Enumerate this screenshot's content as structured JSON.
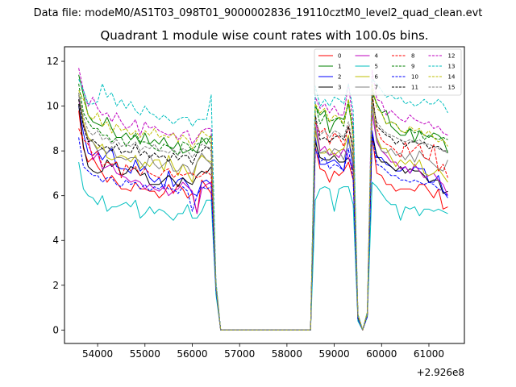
{
  "suptitle": "Data file: modeM0/AS1T03_098T01_9000002836_19110cztM0_level2_quad_clean.evt",
  "chart_data": {
    "type": "line",
    "title": "Quadrant 1 module wise count rates with 100.0s bins.",
    "xlabel": "",
    "ylabel": "",
    "offset_label": "+2.926e8",
    "xlim": [
      53300,
      61750
    ],
    "ylim": [
      -0.6,
      12.65
    ],
    "xticks": [
      54000,
      55000,
      56000,
      57000,
      58000,
      59000,
      60000,
      61000
    ],
    "yticks": [
      0,
      2,
      4,
      6,
      8,
      10,
      12
    ],
    "legend_location": "top-right",
    "x": [
      53600,
      53700,
      53800,
      53900,
      54000,
      54100,
      54200,
      54300,
      54400,
      54500,
      54600,
      54700,
      54800,
      54900,
      55000,
      55100,
      55200,
      55300,
      55400,
      55500,
      55600,
      55700,
      55800,
      55900,
      56000,
      56100,
      56200,
      56300,
      56400,
      56500,
      56600,
      58500,
      58600,
      58700,
      58800,
      58900,
      59000,
      59100,
      59200,
      59300,
      59400,
      59500,
      59600,
      59700,
      59800,
      59900,
      60000,
      60100,
      60200,
      60300,
      60400,
      60500,
      60600,
      60700,
      60800,
      60900,
      61000,
      61100,
      61200,
      61300,
      61400
    ],
    "series": [
      {
        "name": "0",
        "color": "#ff0000",
        "dash": "solid",
        "values": [
          9.8,
          8.1,
          7.5,
          7.7,
          7.3,
          7.0,
          6.6,
          6.9,
          6.6,
          6.3,
          6.3,
          6.2,
          6.6,
          6.3,
          6.3,
          6.2,
          6.2,
          5.9,
          6.1,
          6.5,
          6.1,
          6.5,
          6.3,
          5.9,
          6.1,
          5.2,
          6.7,
          6.4,
          6.1,
          1.8,
          0.0,
          0.0,
          8.2,
          7.2,
          7.1,
          6.6,
          7.1,
          6.9,
          7.1,
          7.5,
          6.7,
          0.5,
          0.0,
          0.7,
          8.7,
          7.0,
          6.9,
          6.5,
          6.5,
          6.2,
          6.3,
          6.3,
          6.3,
          6.2,
          6.5,
          6.5,
          6.2,
          5.9,
          6.3,
          5.4,
          5.5
        ]
      },
      {
        "name": "1",
        "color": "#008000",
        "dash": "solid",
        "values": [
          11.4,
          10.5,
          9.6,
          9.3,
          9.2,
          9.1,
          9.5,
          9.0,
          8.6,
          8.6,
          8.8,
          8.5,
          8.7,
          8.3,
          8.8,
          8.3,
          8.5,
          8.3,
          8.6,
          8.2,
          8.1,
          8.4,
          7.9,
          8.0,
          8.1,
          7.9,
          8.6,
          8.3,
          8.7,
          2.0,
          0.0,
          0.0,
          10.0,
          9.6,
          9.8,
          8.8,
          9.3,
          9.5,
          9.4,
          10.1,
          8.7,
          0.6,
          0.0,
          0.8,
          10.6,
          10.1,
          9.7,
          9.8,
          9.1,
          8.9,
          8.7,
          8.7,
          9.0,
          8.4,
          8.9,
          8.7,
          8.6,
          8.8,
          8.7,
          8.5,
          7.9
        ]
      },
      {
        "name": "2",
        "color": "#0000ff",
        "dash": "solid",
        "values": [
          10.0,
          8.8,
          7.9,
          7.8,
          8.0,
          7.6,
          7.9,
          8.1,
          7.3,
          7.2,
          7.2,
          7.0,
          7.6,
          7.1,
          7.3,
          6.8,
          6.6,
          6.8,
          6.3,
          7.1,
          6.4,
          6.7,
          6.8,
          6.5,
          6.1,
          6.0,
          6.6,
          6.7,
          6.5,
          1.9,
          0.0,
          0.0,
          8.6,
          7.4,
          7.4,
          7.5,
          7.6,
          7.4,
          7.1,
          8.6,
          7.2,
          0.5,
          0.0,
          0.7,
          8.9,
          7.7,
          7.7,
          7.4,
          7.3,
          7.1,
          7.1,
          7.3,
          7.0,
          7.3,
          7.2,
          7.2,
          6.6,
          6.6,
          6.9,
          6.2,
          5.9
        ]
      },
      {
        "name": "3",
        "color": "#000000",
        "dash": "solid",
        "values": [
          10.1,
          8.2,
          7.3,
          7.1,
          7.0,
          7.1,
          7.6,
          7.3,
          7.5,
          6.9,
          7.0,
          7.3,
          7.2,
          6.9,
          7.0,
          6.5,
          6.5,
          6.5,
          6.7,
          6.9,
          6.7,
          6.4,
          6.8,
          6.6,
          6.5,
          6.9,
          7.1,
          7.0,
          7.3,
          1.9,
          0.0,
          0.0,
          8.4,
          7.7,
          7.6,
          7.6,
          7.8,
          7.5,
          7.5,
          7.7,
          7.1,
          0.5,
          0.0,
          0.7,
          8.7,
          7.8,
          7.5,
          7.5,
          7.3,
          7.1,
          7.3,
          7.0,
          7.2,
          7.1,
          7.1,
          6.9,
          6.6,
          6.7,
          6.7,
          6.1,
          6.2
        ]
      },
      {
        "name": "4",
        "color": "#bf00bf",
        "dash": "solid",
        "values": [
          10.3,
          9.2,
          8.5,
          7.6,
          7.9,
          7.2,
          7.3,
          7.4,
          7.0,
          6.9,
          6.8,
          6.6,
          6.7,
          6.6,
          6.3,
          6.5,
          6.3,
          6.2,
          6.4,
          6.0,
          6.2,
          6.3,
          6.6,
          6.4,
          6.2,
          5.2,
          6.3,
          6.5,
          6.6,
          1.8,
          0.0,
          0.0,
          9.5,
          8.0,
          8.2,
          7.8,
          7.9,
          7.7,
          8.1,
          7.7,
          7.2,
          0.6,
          0.0,
          0.7,
          9.7,
          8.4,
          8.0,
          7.8,
          7.5,
          7.5,
          7.2,
          7.3,
          7.0,
          7.4,
          7.1,
          6.8,
          6.9,
          7.0,
          6.7,
          6.5,
          6.0
        ]
      },
      {
        "name": "5",
        "color": "#00bfbf",
        "dash": "solid",
        "values": [
          7.5,
          6.3,
          6.0,
          5.9,
          5.6,
          6.0,
          5.3,
          5.5,
          5.5,
          5.6,
          5.7,
          5.5,
          5.8,
          5.0,
          5.2,
          5.5,
          5.2,
          5.4,
          5.3,
          5.1,
          4.9,
          5.2,
          5.2,
          5.6,
          5.0,
          5.0,
          5.3,
          5.8,
          5.8,
          1.6,
          0.0,
          0.0,
          5.8,
          6.3,
          6.4,
          6.3,
          5.3,
          6.3,
          6.4,
          6.4,
          5.6,
          0.4,
          0.0,
          0.6,
          6.6,
          6.4,
          6.1,
          5.8,
          5.6,
          5.6,
          4.9,
          5.5,
          5.4,
          5.5,
          5.1,
          5.4,
          5.4,
          5.3,
          5.4,
          5.3,
          5.2
        ]
      },
      {
        "name": "6",
        "color": "#bfbf00",
        "dash": "solid",
        "values": [
          10.6,
          9.3,
          8.6,
          8.4,
          8.1,
          8.3,
          7.7,
          7.6,
          7.7,
          7.8,
          7.7,
          7.5,
          7.8,
          7.2,
          7.5,
          7.3,
          7.6,
          7.6,
          7.1,
          7.8,
          7.3,
          6.9,
          7.4,
          7.0,
          6.6,
          7.5,
          7.8,
          7.6,
          7.5,
          2.0,
          0.0,
          0.0,
          8.9,
          7.9,
          7.9,
          8.1,
          7.8,
          8.0,
          8.1,
          8.7,
          7.5,
          0.6,
          0.0,
          0.7,
          10.3,
          8.6,
          8.1,
          8.1,
          7.7,
          7.3,
          7.6,
          7.4,
          7.6,
          7.3,
          7.6,
          7.0,
          6.9,
          7.0,
          7.2,
          6.9,
          6.6
        ]
      },
      {
        "name": "7",
        "color": "#7f7f7f",
        "dash": "solid",
        "values": [
          10.5,
          9.1,
          8.5,
          8.4,
          8.0,
          8.1,
          7.9,
          8.2,
          7.7,
          7.7,
          7.6,
          7.7,
          7.7,
          7.5,
          7.2,
          7.8,
          7.4,
          7.2,
          7.4,
          7.6,
          7.1,
          7.1,
          7.4,
          7.3,
          6.9,
          7.5,
          7.9,
          7.6,
          7.4,
          2.0,
          0.0,
          0.0,
          9.1,
          7.9,
          8.0,
          7.8,
          8.1,
          8.0,
          7.6,
          8.4,
          7.8,
          0.6,
          0.0,
          0.7,
          10.1,
          8.5,
          8.0,
          7.9,
          8.1,
          7.8,
          7.9,
          7.6,
          7.9,
          7.5,
          8.0,
          7.7,
          7.6,
          7.4,
          7.2,
          7.1,
          7.6
        ]
      },
      {
        "name": "8",
        "color": "#ff0000",
        "dash": "dashed",
        "values": [
          9.0,
          8.5,
          8.3,
          7.8,
          8.0,
          7.3,
          7.5,
          7.4,
          7.5,
          6.8,
          7.4,
          7.1,
          7.3,
          6.9,
          7.2,
          7.0,
          6.9,
          6.8,
          7.1,
          7.2,
          6.8,
          7.0,
          6.9,
          7.0,
          7.0,
          6.8,
          6.9,
          7.1,
          6.9,
          1.9,
          0.0,
          0.0,
          9.3,
          8.8,
          9.0,
          8.3,
          8.8,
          8.6,
          8.2,
          9.1,
          8.0,
          0.6,
          0.0,
          0.7,
          10.6,
          9.0,
          8.5,
          8.3,
          8.2,
          8.0,
          7.7,
          8.4,
          7.9,
          8.1,
          8.3,
          7.7,
          7.6,
          8.3,
          7.1,
          7.4,
          6.8
        ]
      },
      {
        "name": "9",
        "color": "#008000",
        "dash": "dashed",
        "values": [
          11.0,
          9.7,
          9.3,
          9.0,
          9.0,
          8.7,
          8.7,
          8.4,
          8.6,
          8.6,
          8.2,
          8.5,
          8.8,
          8.4,
          8.4,
          8.3,
          8.1,
          8.0,
          8.3,
          8.2,
          8.0,
          7.8,
          8.4,
          8.3,
          8.0,
          8.3,
          8.4,
          8.6,
          8.3,
          2.0,
          0.0,
          0.0,
          10.1,
          9.2,
          9.6,
          9.3,
          9.4,
          9.5,
          9.1,
          10.3,
          8.9,
          0.7,
          0.0,
          0.8,
          10.7,
          10.1,
          9.7,
          9.2,
          9.3,
          9.2,
          8.9,
          8.8,
          9.0,
          8.8,
          8.9,
          8.5,
          8.7,
          8.6,
          8.5,
          8.6,
          8.5
        ]
      },
      {
        "name": "10",
        "color": "#0000ff",
        "dash": "dashed",
        "values": [
          8.6,
          7.3,
          7.1,
          6.9,
          6.9,
          6.6,
          6.8,
          6.8,
          6.5,
          6.4,
          6.7,
          6.5,
          6.6,
          6.3,
          6.5,
          6.2,
          6.4,
          6.3,
          6.5,
          6.3,
          6.3,
          6.1,
          6.4,
          6.2,
          5.3,
          6.0,
          6.4,
          6.3,
          6.4,
          1.8,
          0.0,
          0.0,
          8.1,
          7.5,
          7.7,
          7.2,
          7.4,
          7.3,
          7.1,
          8.1,
          6.7,
          0.5,
          0.0,
          0.6,
          8.7,
          7.4,
          7.3,
          7.1,
          6.9,
          6.9,
          6.7,
          6.7,
          6.6,
          6.7,
          6.6,
          6.5,
          6.6,
          6.5,
          6.3,
          6.2,
          6.0
        ]
      },
      {
        "name": "11",
        "color": "#000000",
        "dash": "dashed",
        "values": [
          10.3,
          9.1,
          8.4,
          8.5,
          8.3,
          8.1,
          8.2,
          8.0,
          8.3,
          7.9,
          8.0,
          7.9,
          8.3,
          7.8,
          8.0,
          7.7,
          7.9,
          7.7,
          7.8,
          7.5,
          7.9,
          7.6,
          7.8,
          7.8,
          7.4,
          7.9,
          8.0,
          8.2,
          8.0,
          2.0,
          0.0,
          0.0,
          9.6,
          8.5,
          8.6,
          8.4,
          8.6,
          8.7,
          8.5,
          9.1,
          8.0,
          0.6,
          0.0,
          0.7,
          10.5,
          9.1,
          8.9,
          8.7,
          8.6,
          8.3,
          8.5,
          8.2,
          8.4,
          8.4,
          8.3,
          8.4,
          8.1,
          8.2,
          8.2,
          8.0,
          8.0
        ]
      },
      {
        "name": "12",
        "color": "#bf00bf",
        "dash": "dashed",
        "values": [
          11.7,
          10.7,
          10.0,
          10.4,
          9.9,
          9.6,
          9.7,
          9.3,
          9.7,
          9.3,
          9.0,
          9.1,
          9.4,
          8.7,
          9.3,
          9.0,
          9.1,
          8.9,
          8.8,
          8.7,
          8.8,
          8.5,
          8.8,
          8.9,
          8.3,
          8.6,
          8.9,
          9.0,
          9.0,
          2.1,
          0.0,
          0.0,
          10.4,
          9.9,
          10.1,
          9.7,
          10.0,
          9.6,
          9.6,
          11.0,
          9.2,
          0.7,
          0.0,
          0.8,
          11.6,
          10.3,
          10.2,
          9.6,
          9.8,
          9.6,
          9.4,
          9.3,
          9.6,
          9.4,
          9.3,
          9.2,
          9.3,
          9.0,
          9.1,
          8.8,
          8.7
        ]
      },
      {
        "name": "13",
        "color": "#00bfbf",
        "dash": "dashed",
        "values": [
          11.2,
          10.7,
          10.1,
          10.1,
          10.2,
          11.0,
          10.4,
          10.6,
          10.0,
          10.3,
          9.9,
          10.2,
          9.8,
          9.6,
          10.0,
          9.7,
          9.6,
          9.4,
          9.6,
          9.4,
          9.2,
          9.4,
          9.5,
          9.5,
          9.1,
          9.4,
          9.4,
          9.4,
          10.5,
          2.2,
          0.0,
          0.0,
          10.9,
          10.0,
          10.3,
          10.0,
          10.4,
          10.3,
          10.1,
          11.0,
          9.8,
          0.7,
          0.0,
          0.8,
          11.2,
          11.0,
          10.7,
          10.4,
          10.5,
          10.3,
          10.4,
          10.1,
          10.2,
          10.0,
          10.1,
          10.3,
          10.1,
          10.1,
          10.3,
          10.1,
          9.7
        ]
      },
      {
        "name": "14",
        "color": "#bfbf00",
        "dash": "dashed",
        "values": [
          10.7,
          10.3,
          9.6,
          9.4,
          9.7,
          9.1,
          9.3,
          8.8,
          9.2,
          8.9,
          9.0,
          8.7,
          8.9,
          8.6,
          8.9,
          8.7,
          9.0,
          8.6,
          8.7,
          8.6,
          8.8,
          8.4,
          8.7,
          8.5,
          8.1,
          8.5,
          8.9,
          8.7,
          8.6,
          2.0,
          0.0,
          0.0,
          10.1,
          9.7,
          9.9,
          9.3,
          9.6,
          9.5,
          9.2,
          10.3,
          8.6,
          0.7,
          0.0,
          0.8,
          11.0,
          9.9,
          9.7,
          9.2,
          9.3,
          9.2,
          8.9,
          8.8,
          9.1,
          8.9,
          9.0,
          8.7,
          8.9,
          8.6,
          8.4,
          8.5,
          8.2
        ]
      },
      {
        "name": "15",
        "color": "#7f7f7f",
        "dash": "dashed",
        "values": [
          10.6,
          9.5,
          8.9,
          8.7,
          8.9,
          8.5,
          8.6,
          8.3,
          8.5,
          8.2,
          8.3,
          8.2,
          8.4,
          8.0,
          8.2,
          8.1,
          8.3,
          8.0,
          8.0,
          7.9,
          8.1,
          7.8,
          8.1,
          8.0,
          7.7,
          8.0,
          8.3,
          8.2,
          8.1,
          2.0,
          0.0,
          0.0,
          9.4,
          8.7,
          8.9,
          8.6,
          8.9,
          8.8,
          8.6,
          9.3,
          8.3,
          0.6,
          0.0,
          0.7,
          10.2,
          9.3,
          9.0,
          8.8,
          8.7,
          8.6,
          8.5,
          8.4,
          8.5,
          8.4,
          8.5,
          8.3,
          8.3,
          8.2,
          8.1,
          8.0,
          7.9
        ]
      }
    ]
  }
}
